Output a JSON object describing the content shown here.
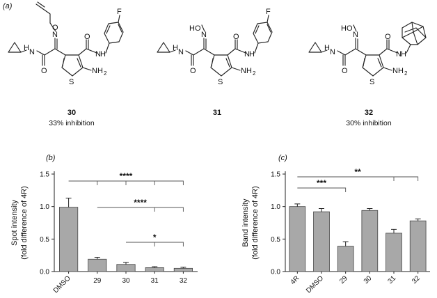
{
  "panel_a": {
    "label": "(a)",
    "compounds": [
      {
        "id": "30",
        "inhibition": "33% inhibition"
      },
      {
        "id": "31",
        "inhibition": ""
      },
      {
        "id": "32",
        "inhibition": "30% inhibition"
      }
    ],
    "atoms": {
      "O": "O",
      "N": "N",
      "H": "H",
      "F": "F",
      "S": "S",
      "HO": "HO",
      "NH2": "NH",
      "NH2_sub": "2"
    }
  },
  "chart_data": [
    {
      "type": "bar",
      "panel_label": "(b)",
      "categories": [
        "DMSO",
        "29",
        "30",
        "31",
        "32"
      ],
      "values": [
        0.99,
        0.19,
        0.11,
        0.06,
        0.05
      ],
      "errors": [
        0.14,
        0.03,
        0.03,
        0.015,
        0.015
      ],
      "ylabel": "Spot intensity",
      "ylabel2": "(fold difference of 4R)",
      "ylim": [
        0,
        1.5
      ],
      "yticks": [
        "0.0",
        "0.5",
        "1.0",
        "1.5"
      ],
      "significance": [
        {
          "from": "DMSO",
          "to": [
            "29",
            "30",
            "31",
            "32"
          ],
          "label": "****"
        },
        {
          "from": "29",
          "to": [
            "31",
            "32"
          ],
          "label": "****"
        },
        {
          "from": "30",
          "to": [
            "31",
            "32"
          ],
          "label": "*"
        }
      ]
    },
    {
      "type": "bar",
      "panel_label": "(c)",
      "categories": [
        "4R",
        "DMSO",
        "29",
        "30",
        "31",
        "32"
      ],
      "values": [
        1.0,
        0.92,
        0.39,
        0.94,
        0.59,
        0.78
      ],
      "errors": [
        0.04,
        0.05,
        0.07,
        0.03,
        0.06,
        0.03
      ],
      "ylabel": "Band intensity",
      "ylabel2": "(fold difference of 4R)",
      "ylim": [
        0,
        1.5
      ],
      "yticks": [
        "0.0",
        "0.5",
        "1.0",
        "1.5"
      ],
      "significance": [
        {
          "from": "4R",
          "to": [
            "31",
            "32"
          ],
          "label": "**"
        },
        {
          "from": "4R",
          "to": [
            "29"
          ],
          "label": "***"
        }
      ]
    }
  ]
}
